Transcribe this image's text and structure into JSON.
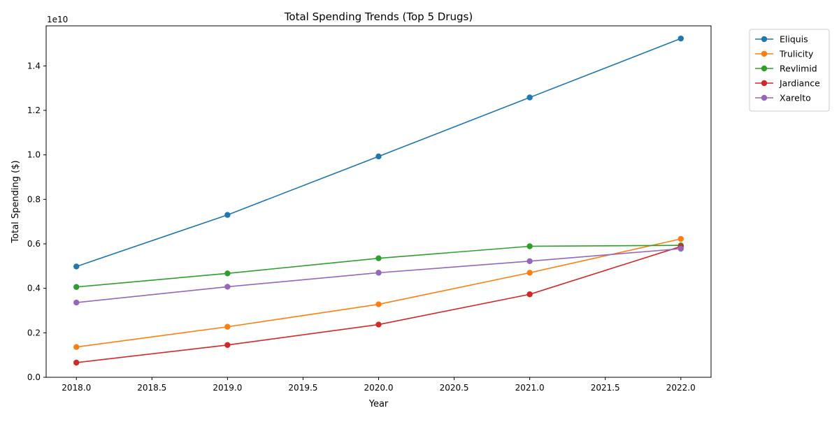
{
  "chart_data": {
    "type": "line",
    "title": "Total Spending Trends (Top 5 Drugs)",
    "xlabel": "Year",
    "ylabel": "Total Spending ($)",
    "offset_text": "1e10",
    "x": [
      2018,
      2019,
      2020,
      2021,
      2022
    ],
    "xlim": [
      2017.8,
      2022.2
    ],
    "ylim": [
      -0.0,
      15800000000.0
    ],
    "x_ticks": [
      {
        "value": 2018.0,
        "label": "2018.0"
      },
      {
        "value": 2018.5,
        "label": "2018.5"
      },
      {
        "value": 2019.0,
        "label": "2019.0"
      },
      {
        "value": 2019.5,
        "label": "2019.5"
      },
      {
        "value": 2020.0,
        "label": "2020.0"
      },
      {
        "value": 2020.5,
        "label": "2020.5"
      },
      {
        "value": 2021.0,
        "label": "2021.0"
      },
      {
        "value": 2021.5,
        "label": "2021.5"
      },
      {
        "value": 2022.0,
        "label": "2022.0"
      }
    ],
    "y_ticks": [
      {
        "value": 0.0,
        "label": "0.0"
      },
      {
        "value": 2000000000.0,
        "label": "0.2"
      },
      {
        "value": 4000000000.0,
        "label": "0.4"
      },
      {
        "value": 6000000000.0,
        "label": "0.6"
      },
      {
        "value": 8000000000.0,
        "label": "0.8"
      },
      {
        "value": 10000000000.0,
        "label": "1.0"
      },
      {
        "value": 12000000000.0,
        "label": "1.2"
      },
      {
        "value": 14000000000.0,
        "label": "1.4"
      }
    ],
    "grid": false,
    "legend_position": "outside-top-right",
    "series": [
      {
        "name": "Eliquis",
        "color": "#1f77b4",
        "values": [
          4980000000.0,
          7300000000.0,
          9930000000.0,
          12580000000.0,
          15230000000.0
        ]
      },
      {
        "name": "Trulicity",
        "color": "#ff7f0e",
        "values": [
          1360000000.0,
          2270000000.0,
          3280000000.0,
          4700000000.0,
          6220000000.0
        ]
      },
      {
        "name": "Revlimid",
        "color": "#2ca02c",
        "values": [
          4060000000.0,
          4670000000.0,
          5350000000.0,
          5890000000.0,
          5930000000.0
        ]
      },
      {
        "name": "Jardiance",
        "color": "#d62728",
        "values": [
          660000000.0,
          1450000000.0,
          2370000000.0,
          3730000000.0,
          5880000000.0
        ]
      },
      {
        "name": "Xarelto",
        "color": "#9467bd",
        "values": [
          3360000000.0,
          4070000000.0,
          4700000000.0,
          5220000000.0,
          5780000000.0
        ]
      }
    ]
  }
}
